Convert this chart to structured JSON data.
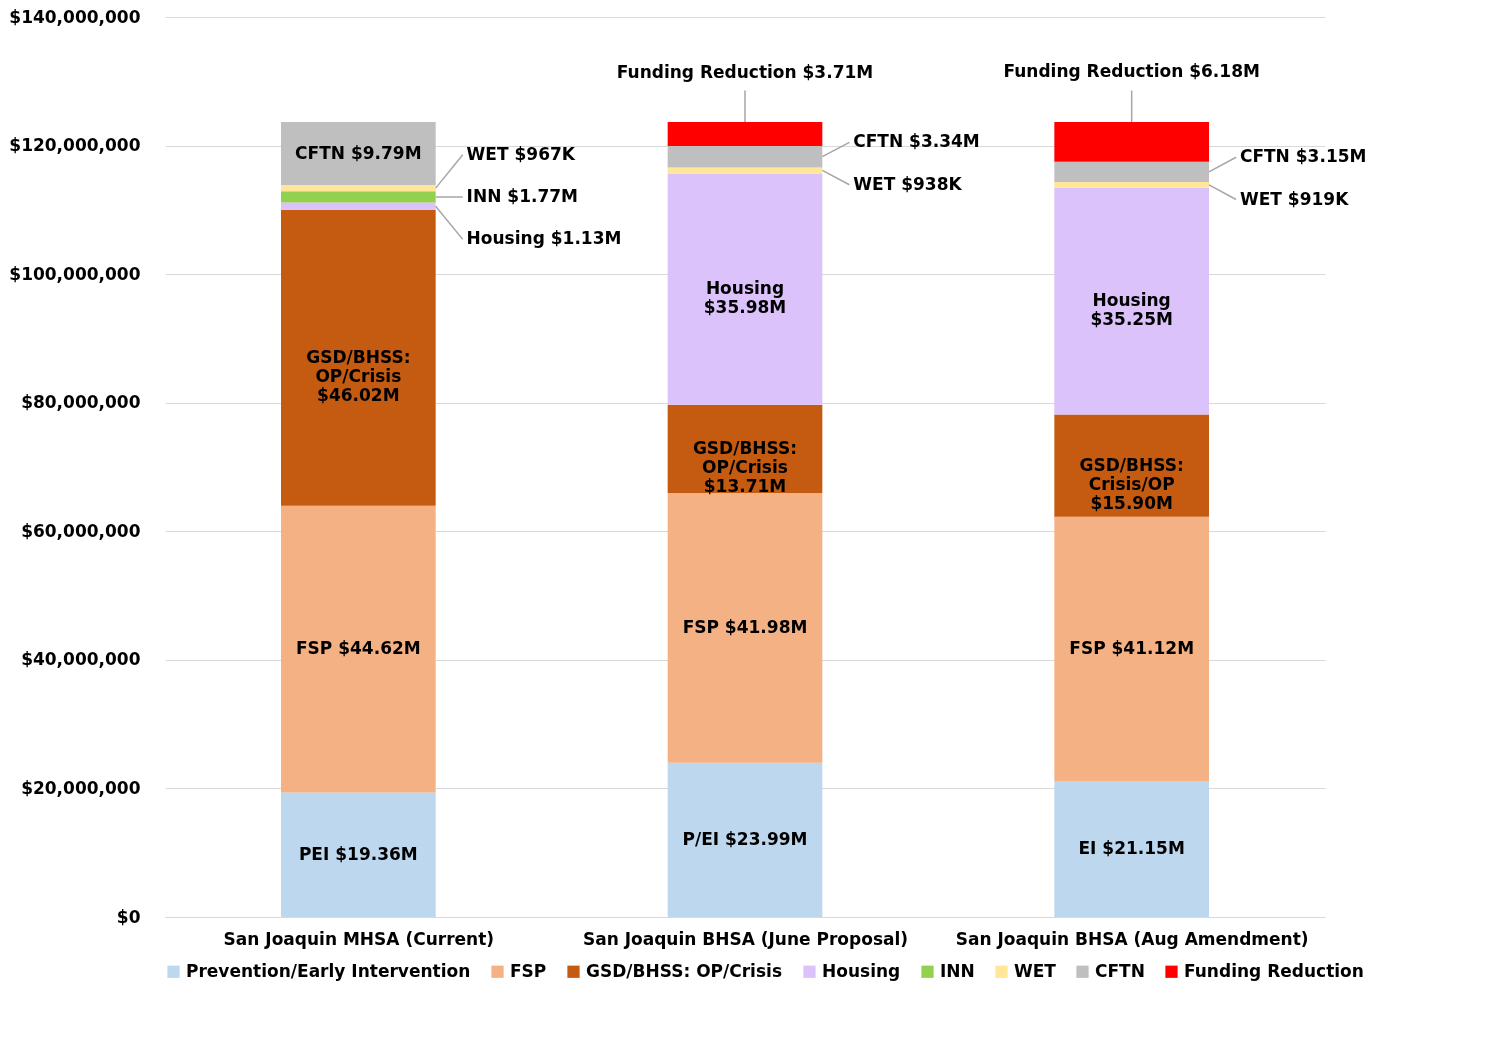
{
  "chart_data": {
    "type": "bar",
    "stacked": true,
    "categories": [
      "San Joaquin MHSA (Current)",
      "San Joaquin BHSA (June Proposal)",
      "San Joaquin BHSA (Aug Amendment)"
    ],
    "series": [
      {
        "name": "Prevention/Early Intervention",
        "color": "#bdd7ee",
        "values": [
          19360000,
          23990000,
          21150000
        ],
        "value_labels": [
          "PEI $19.36M",
          "P/EI $23.99M",
          "EI $21.15M"
        ]
      },
      {
        "name": "FSP",
        "color": "#f4b183",
        "values": [
          44620000,
          41980000,
          41120000
        ],
        "value_labels": [
          "FSP $44.62M",
          "FSP $41.98M",
          "FSP $41.12M"
        ]
      },
      {
        "name": "GSD/BHSS: OP/Crisis",
        "color": "#c55a11",
        "values": [
          46020000,
          13710000,
          15900000
        ],
        "value_labels": [
          "GSD/BHSS:\nOP/Crisis\n$46.02M",
          "GSD/BHSS:\nOP/Crisis\n$13.71M",
          "GSD/BHSS:\nCrisis/OP\n$15.90M"
        ]
      },
      {
        "name": "Housing",
        "color": "#dcc2fa",
        "values": [
          1130000,
          35980000,
          35250000
        ],
        "value_labels": [
          "Housing $1.13M",
          "Housing\n$35.98M",
          "Housing\n$35.25M"
        ]
      },
      {
        "name": "INN",
        "color": "#92d050",
        "values": [
          1770000,
          null,
          null
        ],
        "value_labels": [
          "INN $1.77M",
          null,
          null
        ]
      },
      {
        "name": "WET",
        "color": "#ffe699",
        "values": [
          967000,
          938000,
          919000
        ],
        "value_labels": [
          "WET $967K",
          "WET $938K",
          "WET $919K"
        ]
      },
      {
        "name": "CFTN",
        "color": "#bfbfbf",
        "values": [
          9790000,
          3340000,
          3150000
        ],
        "value_labels": [
          "CFTN $9.79M",
          "CFTN $3.34M",
          "CFTN $3.15M"
        ]
      },
      {
        "name": "Funding Reduction",
        "color": "#ff0000",
        "values": [
          null,
          3710000,
          6180000
        ],
        "value_labels": [
          null,
          "Funding Reduction $3.71M",
          "Funding Reduction $6.18M"
        ]
      }
    ],
    "ylim": [
      0,
      140000000
    ],
    "yticks": [
      {
        "value": 0,
        "label": "$0"
      },
      {
        "value": 20000000,
        "label": "$20,000,000"
      },
      {
        "value": 40000000,
        "label": "$40,000,000"
      },
      {
        "value": 60000000,
        "label": "$60,000,000"
      },
      {
        "value": 80000000,
        "label": "$80,000,000"
      },
      {
        "value": 100000000,
        "label": "$100,000,000"
      },
      {
        "value": 120000000,
        "label": "$120,000,000"
      },
      {
        "value": 140000000,
        "label": "$140,000,000"
      }
    ],
    "grid": "y",
    "legend": "bottom"
  }
}
